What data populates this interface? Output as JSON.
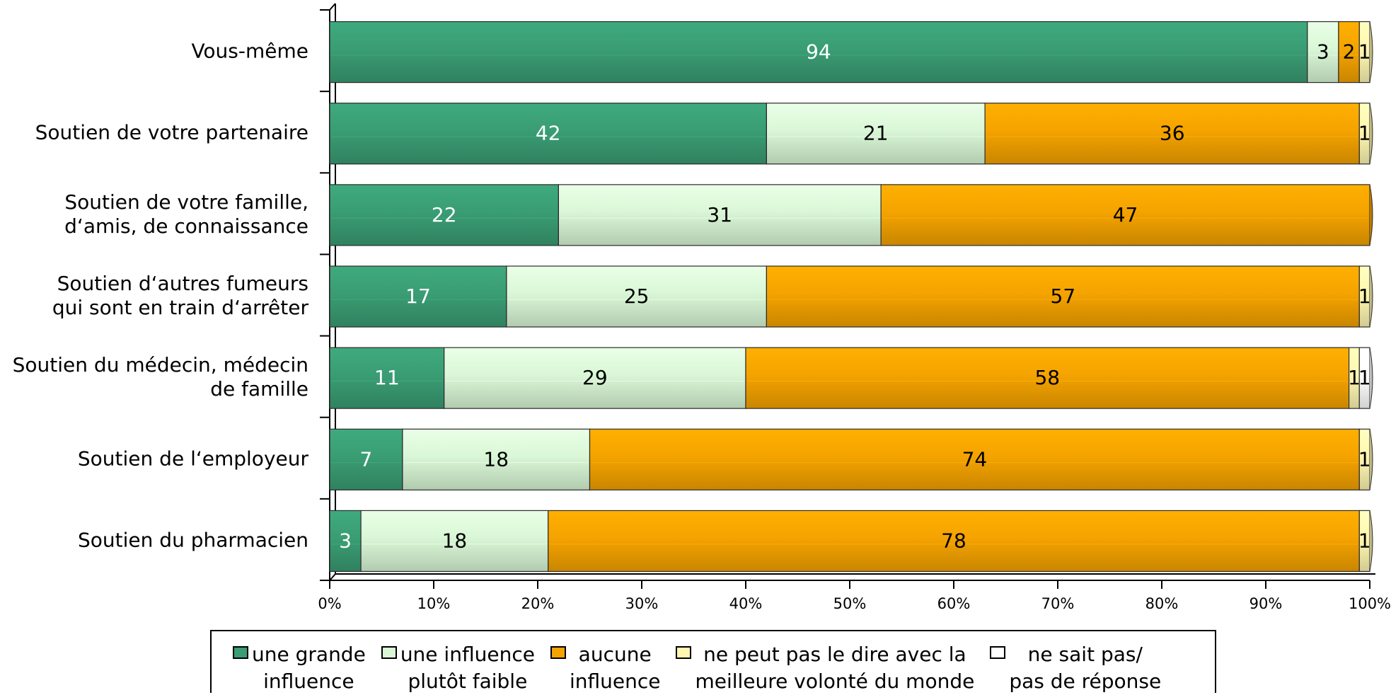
{
  "chart_data": {
    "type": "bar",
    "orientation": "horizontal",
    "stacked": "percent",
    "categories": [
      "Vous-même",
      "Soutien de votre partenaire",
      "Soutien de votre famille,\nd‘amis, de connaissance",
      "Soutien d‘autres fumeurs\nqui sont en train d‘arrêter",
      "Soutien du médecin, médecin\nde famille",
      "Soutien de l‘employeur",
      "Soutien du pharmacien"
    ],
    "series": [
      {
        "name": "une grande\ninfluence",
        "color": "#3a9d74",
        "label_color": "#ffffff",
        "values": [
          94,
          42,
          22,
          17,
          11,
          7,
          3
        ]
      },
      {
        "name": "une influence\nplutôt faible",
        "color": "#d9f7d6",
        "label_color": "#000000",
        "values": [
          3,
          21,
          31,
          25,
          29,
          18,
          18
        ]
      },
      {
        "name": "aucune\ninfluence",
        "color": "#f5a300",
        "label_color": "#000000",
        "values": [
          2,
          36,
          47,
          57,
          58,
          74,
          78
        ]
      },
      {
        "name": "ne peut pas le dire avec la\nmeilleure volonté du monde",
        "color": "#fff7b2",
        "label_color": "#000000",
        "values": [
          1,
          1,
          0,
          1,
          1,
          1,
          1
        ]
      },
      {
        "name": "ne sait pas/\npas de réponse",
        "color": "#ffffff",
        "label_color": "#000000",
        "values": [
          0,
          0,
          0,
          0,
          1,
          0,
          0
        ]
      }
    ],
    "xticks": [
      "0%",
      "10%",
      "20%",
      "30%",
      "40%",
      "50%",
      "60%",
      "70%",
      "80%",
      "90%",
      "100%"
    ],
    "xlim": [
      0,
      100
    ],
    "legend": "bottom"
  }
}
